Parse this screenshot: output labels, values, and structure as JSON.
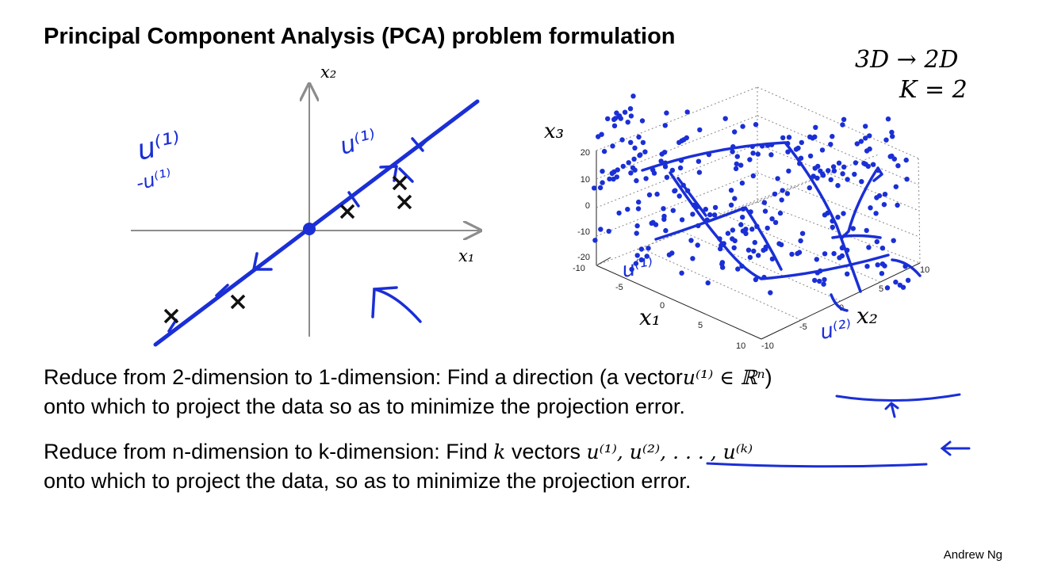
{
  "title": "Principal Component Analysis (PCA) problem formulation",
  "top_right": {
    "line1": "3D → 2D",
    "line2": "K = 2"
  },
  "plot2d": {
    "x_label": "x₁",
    "y_label": "x₂",
    "points": [
      [
        -2.9,
        -1.8
      ],
      [
        -1.5,
        -1.5
      ],
      [
        0.8,
        0.4
      ],
      [
        1.9,
        1.0
      ],
      [
        2.0,
        0.6
      ]
    ],
    "annotations": [
      "u⁽¹⁾",
      "-u⁽¹⁾",
      "u⁽¹⁾"
    ]
  },
  "plot3d": {
    "x_label": "x₁",
    "y_label": "x₂",
    "z_label": "x₃",
    "z_ticks": [
      "20",
      "10",
      "0",
      "-10",
      "-20"
    ],
    "x_ticks": [
      "-10",
      "-5",
      "0",
      "5",
      "10"
    ],
    "y_ticks": [
      "-10",
      "-5",
      "0",
      "5",
      "10"
    ],
    "annotations": [
      "u⁽¹⁾",
      "u⁽²⁾"
    ]
  },
  "text": {
    "p1_line1_a": "Reduce from 2-dimension to 1-dimension: Find a direction (a vector",
    "p1_line1_math": "u⁽¹⁾ ∈ ℝⁿ",
    "p1_line1_b": ")",
    "p1_line2": "onto which to project the data so as to minimize the projection error.",
    "p2_line1_a": "Reduce from n-dimension to k-dimension: Find",
    "p2_line1_k": "k",
    "p2_line1_b": "vectors",
    "p2_line1_math": "u⁽¹⁾, u⁽²⁾, . . . , u⁽ᵏ⁾",
    "p2_line2": "onto which to project the data, so as to minimize the projection error."
  },
  "author": "Andrew Ng",
  "colors": {
    "ink": "#1a2fd6",
    "axis": "#8c8c8c",
    "text": "#000000"
  }
}
